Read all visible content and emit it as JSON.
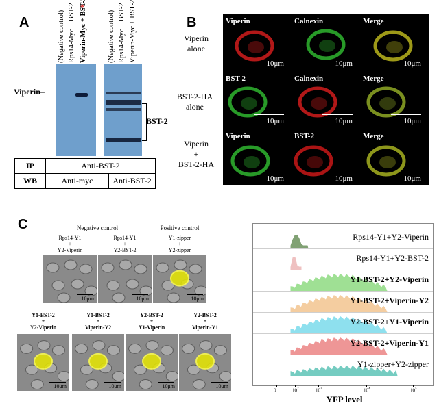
{
  "panel_labels": {
    "a": "A",
    "b": "B",
    "c": "C"
  },
  "panel_a": {
    "lanes_left": [
      "(Negative control)",
      "Rps14-Myc + BST-2",
      "Viperin-Myc + BST-2"
    ],
    "lanes_left_mark": "*",
    "lanes_right": [
      "(Negative control)",
      "Rps14-Myc + BST-2",
      "Viperin-Myc + BST-2"
    ],
    "viperin_label": "Viperin",
    "bst2_label": "BST-2",
    "table": {
      "ip_label": "IP",
      "ip_value": "Anti-BST-2",
      "wb_label": "WB",
      "wb_left": "Anti-myc",
      "wb_right": "Anti-BST-2"
    }
  },
  "panel_b": {
    "row_labels": [
      [
        "Viperin",
        "alone"
      ],
      [
        "BST-2-HA",
        "alone"
      ],
      [
        "Viperin",
        "+",
        "BST-2-HA"
      ]
    ],
    "cells": [
      {
        "title": "Viperin",
        "color": "#d01c1c",
        "scale": "10μm"
      },
      {
        "title": "Calnexin",
        "color": "#2fb52f",
        "scale": "10μm"
      },
      {
        "title": "Merge",
        "color": "#b8b41c",
        "scale": "10μm"
      },
      {
        "title": "BST-2",
        "color": "#2fb52f",
        "scale": "10μm"
      },
      {
        "title": "Calnexin",
        "color": "#d01c1c",
        "scale": "10μm"
      },
      {
        "title": "Merge",
        "color": "#8fa824",
        "scale": "10μm"
      },
      {
        "title": "Viperin",
        "color": "#2fb52f",
        "scale": "10μm"
      },
      {
        "title": "BST-2",
        "color": "#c81818",
        "scale": "10μm"
      },
      {
        "title": "Merge",
        "color": "#a6b020",
        "scale": "10μm"
      }
    ]
  },
  "panel_c": {
    "negative_control": "Negative control",
    "positive_control": "Positive control",
    "top_cells": [
      {
        "label": [
          "Rps14-Y1",
          "+",
          "Y2-Viperin"
        ],
        "scale": "10μm",
        "signal": 0
      },
      {
        "label": [
          "Rps14-Y1",
          "+",
          "Y2-BST-2"
        ],
        "scale": "10μm",
        "signal": 0
      },
      {
        "label": [
          "Y1-zipper",
          "+",
          "Y2-zipper"
        ],
        "scale": "10μm",
        "signal": 1
      }
    ],
    "bottom_cells": [
      {
        "label": [
          "Y1-BST-2",
          "+",
          "Y2-Viperin"
        ],
        "scale": "10μm",
        "signal": 1
      },
      {
        "label": [
          "Y1-BST-2",
          "+",
          "Viperin-Y2"
        ],
        "scale": "10μm",
        "signal": 1
      },
      {
        "label": [
          "Y2-BST-2",
          "+",
          "Y1-Viperin"
        ],
        "scale": "10μm",
        "signal": 1
      },
      {
        "label": [
          "Y2-BST-2",
          "+",
          "Viperin-Y1"
        ],
        "scale": "10μm",
        "signal": 1
      }
    ]
  },
  "flow": {
    "xlabel": "YFP level",
    "tick_labels": [
      "0",
      "10",
      "10",
      "10",
      "10"
    ],
    "tick_exponents": [
      "",
      "2",
      "3",
      "4",
      "5"
    ],
    "series": [
      {
        "name": "Rps14-Y1+Y2-Viperin",
        "color": "#4d7a3a",
        "bold": false
      },
      {
        "name": "Rps14-Y1+Y2-BST-2",
        "color": "#e9a8a8",
        "bold": false
      },
      {
        "name": "Y1-BST-2+Y2-Viperin",
        "color": "#77d467",
        "bold": true
      },
      {
        "name": "Y1-BST-2+Viperin-Y2",
        "color": "#f0b979",
        "bold": true
      },
      {
        "name": "Y2-BST-2+Y1-Viperin",
        "color": "#5fd3e8",
        "bold": true
      },
      {
        "name": "Y2-BST-2+Viperin-Y1",
        "color": "#e86b6b",
        "bold": true
      },
      {
        "name": "Y1-zipper+Y2-zipper",
        "color": "#3cb7a8",
        "bold": false
      }
    ]
  }
}
